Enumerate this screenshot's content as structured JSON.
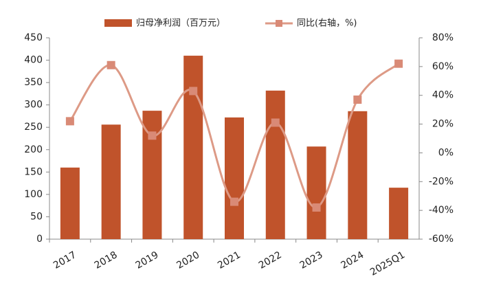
{
  "chart_data": {
    "type": "bar-line",
    "categories": [
      "2017",
      "2018",
      "2019",
      "2020",
      "2021",
      "2022",
      "2023",
      "2024",
      "2025Q1"
    ],
    "series": [
      {
        "name": "归母净利润（百万元）",
        "type": "bar",
        "color": "#c0532b",
        "values": [
          160,
          256,
          287,
          410,
          272,
          332,
          207,
          286,
          115
        ]
      },
      {
        "name": "同比(右轴，%)",
        "type": "line",
        "axis": "y2",
        "color": "#dd9a86",
        "values": [
          22,
          61,
          12,
          43,
          -34,
          21,
          -38,
          37,
          62
        ]
      }
    ],
    "ylim": [
      0,
      450
    ],
    "yticks": [
      0,
      50,
      100,
      150,
      200,
      250,
      300,
      350,
      400,
      450
    ],
    "y2lim": [
      -60,
      80
    ],
    "y2ticks": [
      {
        "value": -60,
        "label": "-60%"
      },
      {
        "value": -40,
        "label": "-40%"
      },
      {
        "value": -20,
        "label": "-20%"
      },
      {
        "value": 0,
        "label": "0%"
      },
      {
        "value": 20,
        "label": "20%"
      },
      {
        "value": 40,
        "label": "40%"
      },
      {
        "value": 60,
        "label": "60%"
      },
      {
        "value": 80,
        "label": "80%"
      }
    ],
    "grid": false,
    "legend": "top"
  }
}
